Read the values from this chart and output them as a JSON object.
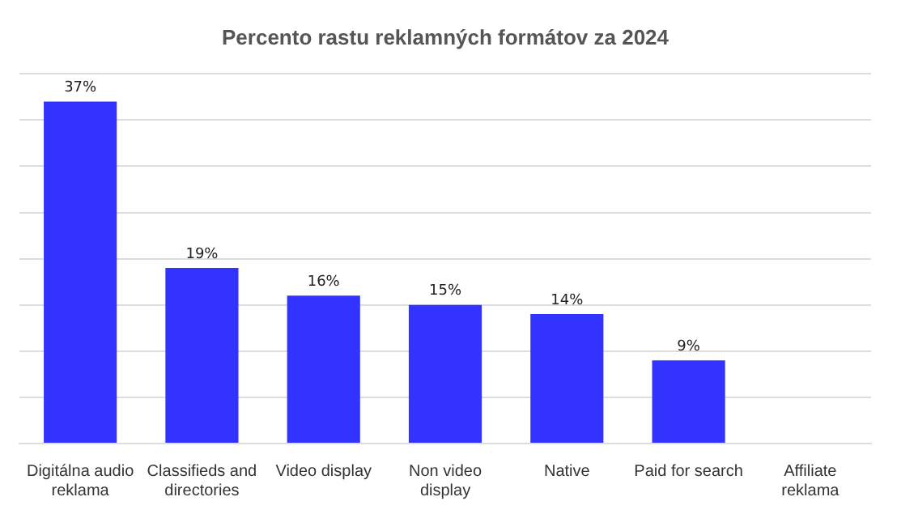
{
  "chart_data": {
    "type": "bar",
    "title": "Percento rastu reklamných formátov za 2024",
    "categories": [
      "Digitálna audio reklama",
      "Classifieds and directories",
      "Video display",
      "Non video display",
      "Native",
      "Paid for search",
      "Affiliate reklama"
    ],
    "values": [
      37,
      19,
      16,
      15,
      14,
      9,
      0
    ],
    "value_labels": [
      "37%",
      "19%",
      "16%",
      "15%",
      "14%",
      "9%",
      null
    ],
    "color": "#3333ff",
    "ylim": [
      0,
      40
    ],
    "yticks": [
      {
        "value": 0,
        "label": null
      },
      {
        "value": 5,
        "label": null
      },
      {
        "value": 10,
        "label": null
      },
      {
        "value": 15,
        "label": null
      },
      {
        "value": 20,
        "label": null
      },
      {
        "value": 25,
        "label": null
      },
      {
        "value": 30,
        "label": null
      },
      {
        "value": 35,
        "label": null
      },
      {
        "value": 40,
        "label": null
      }
    ],
    "grid": "y",
    "tick_labels": "x",
    "legend": false
  }
}
